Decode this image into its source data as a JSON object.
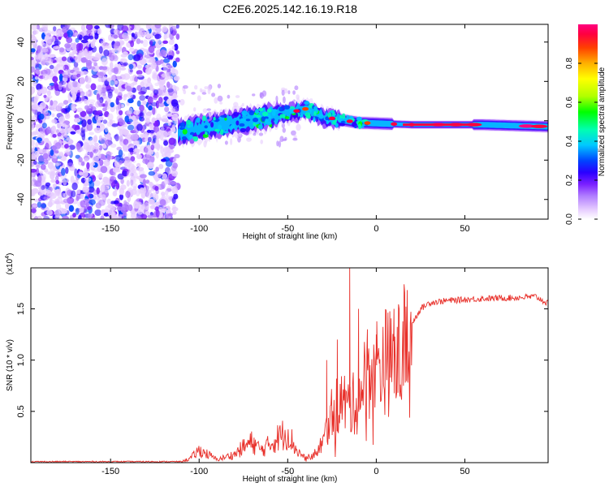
{
  "title": "C2E6.2025.142.16.19.R18",
  "chart_data": [
    {
      "type": "heatmap",
      "xlabel": "Height of straight line (km)",
      "ylabel": "Frequency (Hz)",
      "xlim": [
        -195,
        97
      ],
      "ylim": [
        -50,
        49
      ],
      "xticks": [
        -150,
        -100,
        -50,
        0,
        50
      ],
      "yticks": [
        -40,
        -20,
        0,
        20,
        40
      ],
      "colorbar": {
        "label": "Normalized spectral amplitude",
        "range": [
          0,
          1
        ],
        "ticks": [
          0.0,
          0.2,
          0.4,
          0.6,
          0.8
        ],
        "colors": [
          "#ffffff",
          "#e6ccff",
          "#b07cff",
          "#7a1fff",
          "#2a00ff",
          "#0044ff",
          "#00c8ff",
          "#00ffb0",
          "#00ff00",
          "#b0ff00",
          "#ffff00",
          "#ffb000",
          "#ff4000",
          "#ff0040",
          "#ff0080"
        ]
      },
      "regions": [
        {
          "name": "noise",
          "x": [
            -195,
            -112
          ],
          "y": [
            -50,
            49
          ],
          "amplitude": 0.25
        },
        {
          "name": "signal",
          "x": [
            -112,
            97
          ],
          "center_freq_at": [
            [
              -112,
              -6
            ],
            [
              -50,
              4
            ],
            [
              -40,
              6
            ],
            [
              -30,
              2
            ],
            [
              -10,
              -1
            ],
            [
              20,
              -2
            ],
            [
              60,
              -2
            ],
            [
              97,
              -3
            ]
          ],
          "amplitude_peak": 1.0
        }
      ]
    },
    {
      "type": "line",
      "xlabel": "Height of straight line (km)",
      "ylabel": "SNR (10 * v/v)",
      "yscale_label": "(x10",
      "yscale_exponent": "4",
      "xlim": [
        -195,
        97
      ],
      "ylim": [
        0,
        1.9
      ],
      "xticks": [
        -150,
        -100,
        -50,
        0,
        50
      ],
      "yticks": [
        0.5,
        1.0,
        1.5
      ],
      "color": "#e8302a",
      "envelope": [
        [
          -195,
          0.01
        ],
        [
          -110,
          0.01
        ],
        [
          -105,
          0.04
        ],
        [
          -100,
          0.12
        ],
        [
          -95,
          0.08
        ],
        [
          -90,
          0.03
        ],
        [
          -80,
          0.08
        ],
        [
          -75,
          0.15
        ],
        [
          -70,
          0.2
        ],
        [
          -65,
          0.12
        ],
        [
          -60,
          0.18
        ],
        [
          -55,
          0.25
        ],
        [
          -50,
          0.3
        ],
        [
          -45,
          0.12
        ],
        [
          -40,
          0.04
        ],
        [
          -35,
          0.08
        ],
        [
          -30,
          0.2
        ],
        [
          -25,
          0.5
        ],
        [
          -20,
          0.6
        ],
        [
          -15,
          0.55
        ],
        [
          -10,
          0.6
        ],
        [
          -5,
          0.9
        ],
        [
          0,
          0.95
        ],
        [
          5,
          1.0
        ],
        [
          10,
          0.95
        ],
        [
          15,
          1.1
        ],
        [
          20,
          1.35
        ],
        [
          25,
          1.5
        ],
        [
          30,
          1.56
        ],
        [
          40,
          1.58
        ],
        [
          60,
          1.6
        ],
        [
          80,
          1.61
        ],
        [
          90,
          1.62
        ],
        [
          97,
          1.55
        ]
      ],
      "peaks": [
        [
          -15,
          1.95
        ],
        [
          -10,
          1.5
        ],
        [
          -28,
          1.0
        ],
        [
          -5,
          1.3
        ],
        [
          10,
          1.5
        ],
        [
          0,
          1.25
        ],
        [
          -22,
          1.2
        ]
      ]
    }
  ]
}
